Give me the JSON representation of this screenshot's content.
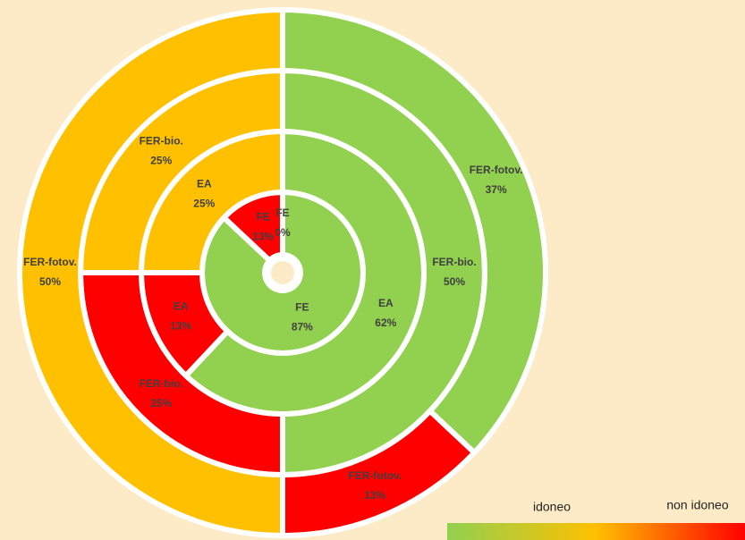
{
  "chart_data": {
    "type": "donut",
    "rings": [
      {
        "labels": [
          "FE",
          "FE",
          "FE"
        ],
        "values": [
          0,
          87,
          13
        ],
        "value_labels": [
          "0%",
          "87%",
          "13%"
        ],
        "colors": [
          "#92d050",
          "#92d050",
          "#ff0000"
        ]
      },
      {
        "labels": [
          "EA",
          "EA",
          "EA"
        ],
        "values": [
          62,
          13,
          25
        ],
        "value_labels": [
          "62%",
          "13%",
          "25%"
        ],
        "colors": [
          "#92d050",
          "#ff0000",
          "#ffc000"
        ]
      },
      {
        "labels": [
          "FER-bio.",
          "FER-bio.",
          "FER-bio."
        ],
        "values": [
          50,
          25,
          25
        ],
        "value_labels": [
          "50%",
          "25%",
          "25%"
        ],
        "colors": [
          "#92d050",
          "#ff0000",
          "#ffc000"
        ]
      },
      {
        "labels": [
          "FER-fotov.",
          "FER-fotov.",
          "FER-fotov."
        ],
        "values": [
          37,
          13,
          50
        ],
        "value_labels": [
          "37%",
          "13%",
          "50%"
        ],
        "colors": [
          "#92d050",
          "#ff0000",
          "#ffc000"
        ]
      }
    ],
    "legend": {
      "labels": [
        "idoneo",
        "non idoneo"
      ],
      "gradient": [
        "#92d050",
        "#ffc000",
        "#ff0000"
      ]
    }
  }
}
